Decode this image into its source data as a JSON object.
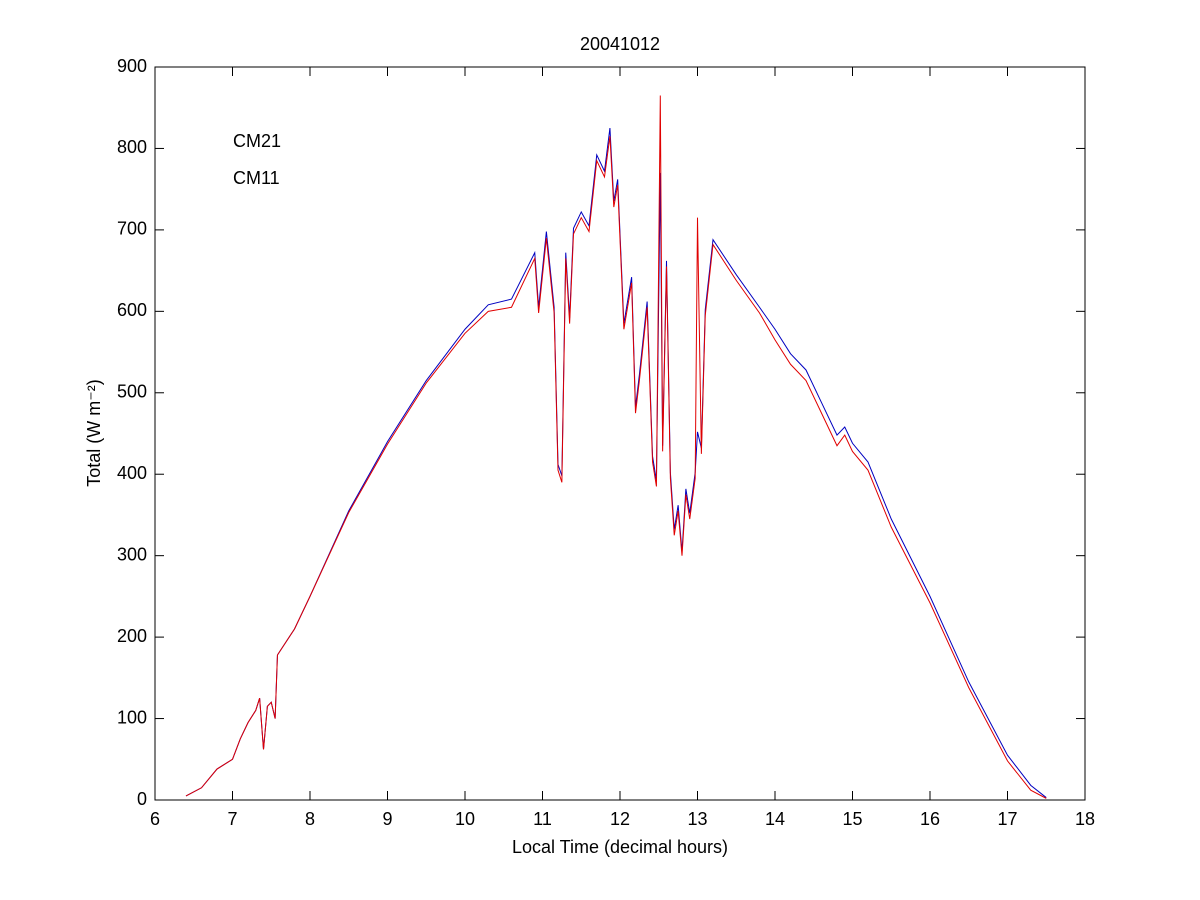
{
  "chart_data": {
    "type": "line",
    "title": "20041012",
    "xlabel": "Local Time (decimal hours)",
    "ylabel": "Total (W m⁻²)",
    "x": [
      6.4,
      6.6,
      6.8,
      7.0,
      7.1,
      7.2,
      7.3,
      7.35,
      7.4,
      7.45,
      7.5,
      7.55,
      7.58,
      7.8,
      8.0,
      8.5,
      9.0,
      9.5,
      10.0,
      10.3,
      10.6,
      10.9,
      10.95,
      11.05,
      11.15,
      11.2,
      11.25,
      11.3,
      11.35,
      11.4,
      11.5,
      11.6,
      11.7,
      11.8,
      11.87,
      11.92,
      11.97,
      12.05,
      12.15,
      12.2,
      12.25,
      12.35,
      12.42,
      12.47,
      12.52,
      12.55,
      12.6,
      12.65,
      12.7,
      12.75,
      12.8,
      12.85,
      12.9,
      12.97,
      13.0,
      13.05,
      13.1,
      13.2,
      13.5,
      13.8,
      14.0,
      14.2,
      14.4,
      14.6,
      14.8,
      14.9,
      15.0,
      15.2,
      15.5,
      16.0,
      16.5,
      17.0,
      17.3,
      17.5
    ],
    "series": [
      {
        "name": "CM21",
        "color": "#0000c0",
        "values": [
          5,
          15,
          38,
          50,
          75,
          95,
          110,
          125,
          62,
          115,
          120,
          100,
          178,
          210,
          250,
          355,
          440,
          515,
          578,
          608,
          615,
          672,
          605,
          698,
          605,
          412,
          398,
          672,
          592,
          702,
          722,
          705,
          792,
          772,
          825,
          735,
          762,
          585,
          642,
          482,
          522,
          612,
          422,
          392,
          770,
          435,
          662,
          402,
          332,
          362,
          305,
          382,
          352,
          402,
          452,
          432,
          602,
          688,
          645,
          605,
          578,
          548,
          528,
          488,
          448,
          458,
          438,
          415,
          345,
          250,
          145,
          55,
          18,
          3
        ]
      },
      {
        "name": "CM11",
        "color": "#e00000",
        "values": [
          5,
          15,
          38,
          50,
          75,
          95,
          110,
          125,
          62,
          115,
          120,
          100,
          178,
          210,
          250,
          353,
          437,
          512,
          573,
          600,
          605,
          665,
          598,
          690,
          598,
          405,
          390,
          665,
          585,
          695,
          715,
          698,
          785,
          765,
          815,
          728,
          755,
          578,
          635,
          475,
          515,
          605,
          415,
          385,
          865,
          428,
          655,
          395,
          325,
          355,
          300,
          375,
          345,
          395,
          715,
          425,
          595,
          682,
          638,
          598,
          565,
          535,
          515,
          475,
          435,
          448,
          428,
          405,
          335,
          242,
          138,
          48,
          12,
          2
        ]
      }
    ],
    "xlim": [
      6,
      18
    ],
    "xticks": [
      6,
      7,
      8,
      9,
      10,
      11,
      12,
      13,
      14,
      15,
      16,
      17,
      18
    ],
    "ylim": [
      0,
      900
    ],
    "yticks": [
      0,
      100,
      200,
      300,
      400,
      500,
      600,
      700,
      800,
      900
    ],
    "legend": "upper left",
    "grid": false
  }
}
